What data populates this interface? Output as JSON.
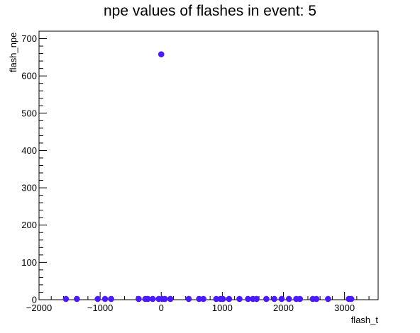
{
  "chart_data": {
    "type": "scatter",
    "title": "npe values of flashes in event: 5",
    "xlabel": "flash_t",
    "ylabel": "flash_npe",
    "xlim": [
      -2000,
      3550
    ],
    "ylim": [
      0,
      720
    ],
    "x_ticks": [
      -2000,
      -1000,
      0,
      1000,
      2000,
      3000
    ],
    "x_tick_labels": [
      "−2000",
      "−1000",
      "0",
      "1000",
      "2000",
      "3000"
    ],
    "y_ticks": [
      0,
      100,
      200,
      300,
      400,
      500,
      600,
      700
    ],
    "y_tick_labels": [
      "0",
      "100",
      "200",
      "300",
      "400",
      "500",
      "600",
      "700"
    ],
    "grid": false,
    "marker_color": "#4b1aff",
    "points": [
      {
        "x": -1560,
        "y": 2
      },
      {
        "x": -1380,
        "y": 2
      },
      {
        "x": -1040,
        "y": 2
      },
      {
        "x": -920,
        "y": 2
      },
      {
        "x": -820,
        "y": 2
      },
      {
        "x": -370,
        "y": 2
      },
      {
        "x": -260,
        "y": 2
      },
      {
        "x": -220,
        "y": 2
      },
      {
        "x": -140,
        "y": 2
      },
      {
        "x": -40,
        "y": 2
      },
      {
        "x": 0,
        "y": 658
      },
      {
        "x": 20,
        "y": 2
      },
      {
        "x": 60,
        "y": 2
      },
      {
        "x": 150,
        "y": 2
      },
      {
        "x": 450,
        "y": 2
      },
      {
        "x": 620,
        "y": 2
      },
      {
        "x": 690,
        "y": 2
      },
      {
        "x": 900,
        "y": 2
      },
      {
        "x": 970,
        "y": 2
      },
      {
        "x": 1010,
        "y": 2
      },
      {
        "x": 1110,
        "y": 2
      },
      {
        "x": 1280,
        "y": 2
      },
      {
        "x": 1420,
        "y": 2
      },
      {
        "x": 1500,
        "y": 2
      },
      {
        "x": 1560,
        "y": 2
      },
      {
        "x": 1720,
        "y": 2
      },
      {
        "x": 1850,
        "y": 2
      },
      {
        "x": 1970,
        "y": 2
      },
      {
        "x": 2090,
        "y": 2
      },
      {
        "x": 2210,
        "y": 2
      },
      {
        "x": 2270,
        "y": 2
      },
      {
        "x": 2480,
        "y": 2
      },
      {
        "x": 2540,
        "y": 2
      },
      {
        "x": 2730,
        "y": 2
      },
      {
        "x": 3070,
        "y": 2
      },
      {
        "x": 3110,
        "y": 2
      }
    ]
  }
}
